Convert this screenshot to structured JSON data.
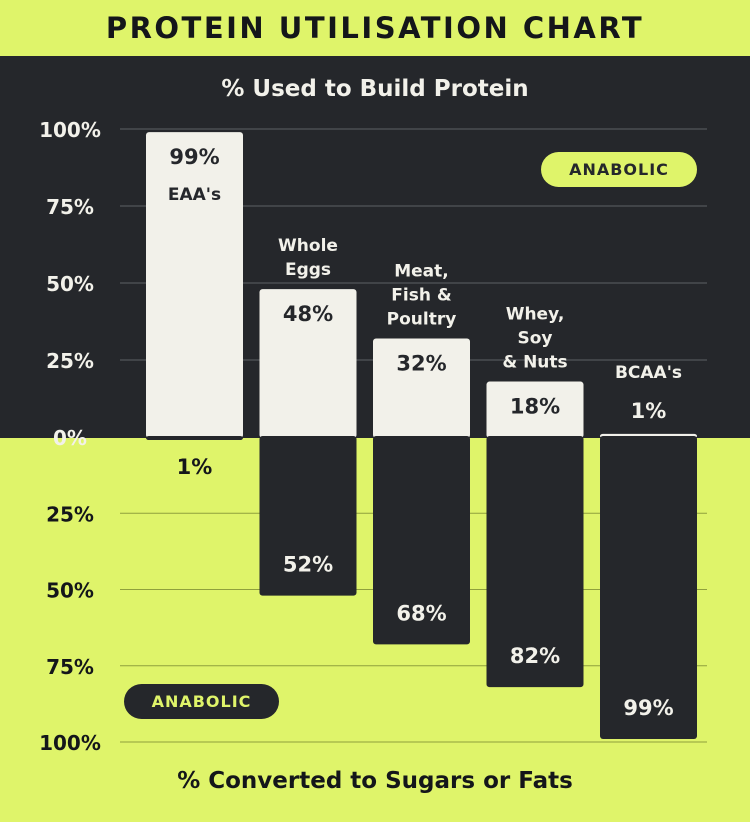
{
  "title": "PROTEIN UTILISATION CHART",
  "colors": {
    "background": "#dff46a",
    "dark": "#25272b",
    "light_bar": "#f2f1ea"
  },
  "badges": {
    "top": "ANABOLIC",
    "bottom": "ANABOLIC"
  },
  "chart_data": {
    "type": "bar",
    "categories": [
      "EAA's",
      "Whole Eggs",
      "Meat, Fish & Poultry",
      "Whey, Soy & Nuts",
      "BCAA's"
    ],
    "category_lines": [
      [
        "EAA's"
      ],
      [
        "Whole",
        "Eggs"
      ],
      [
        "Meat,",
        "Fish &",
        "Poultry"
      ],
      [
        "Whey,",
        "Soy",
        "& Nuts"
      ],
      [
        "BCAA's"
      ]
    ],
    "series": [
      {
        "name": "% Used to Build Protein",
        "values": [
          99,
          48,
          32,
          18,
          1
        ],
        "labels": [
          "99%",
          "48%",
          "32%",
          "18%",
          "1%"
        ]
      },
      {
        "name": "% Converted to Sugars or Fats",
        "values": [
          1,
          52,
          68,
          82,
          99
        ],
        "labels": [
          "1%",
          "52%",
          "68%",
          "82%",
          "99%"
        ]
      }
    ],
    "y_ticks_top": [
      "100%",
      "75%",
      "50%",
      "25%",
      "0%"
    ],
    "y_ticks_bottom": [
      "25%",
      "50%",
      "75%",
      "100%"
    ],
    "ylim": [
      -100,
      100
    ],
    "grid": true
  }
}
